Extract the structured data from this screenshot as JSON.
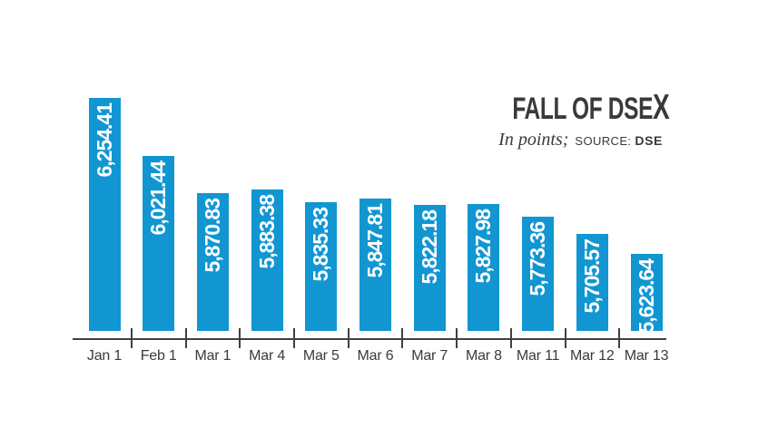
{
  "header": {
    "title": "FALL OF DSEX",
    "subtitle_unit": "In points;",
    "source_label": "SOURCE:",
    "source_value": "DSE"
  },
  "chart_data": {
    "type": "bar",
    "title": "FALL OF DSEX",
    "ylabel": "In points",
    "xlabel": "",
    "source": "DSE",
    "categories": [
      "Jan 1",
      "Feb 1",
      "Mar 1",
      "Mar 4",
      "Mar 5",
      "Mar 6",
      "Mar 7",
      "Mar 8",
      "Mar 11",
      "Mar 12",
      "Mar 13"
    ],
    "values": [
      6254.41,
      6021.44,
      5870.83,
      5883.38,
      5835.33,
      5847.81,
      5822.18,
      5827.98,
      5773.36,
      5705.57,
      5623.64
    ],
    "value_labels": [
      "6,254.41",
      "6,021.44",
      "5,870.83",
      "5,883.38",
      "5,835.33",
      "5,847.81",
      "5,822.18",
      "5,827.98",
      "5,773.36",
      "5,705.57",
      "5,623.64"
    ],
    "ylim": [
      5314,
      6280
    ],
    "grid": false,
    "legend": "none",
    "colors": {
      "bar": "#1196d2",
      "bar_label": "#ffffff",
      "axis": "#414042",
      "text": "#3a393b"
    }
  }
}
